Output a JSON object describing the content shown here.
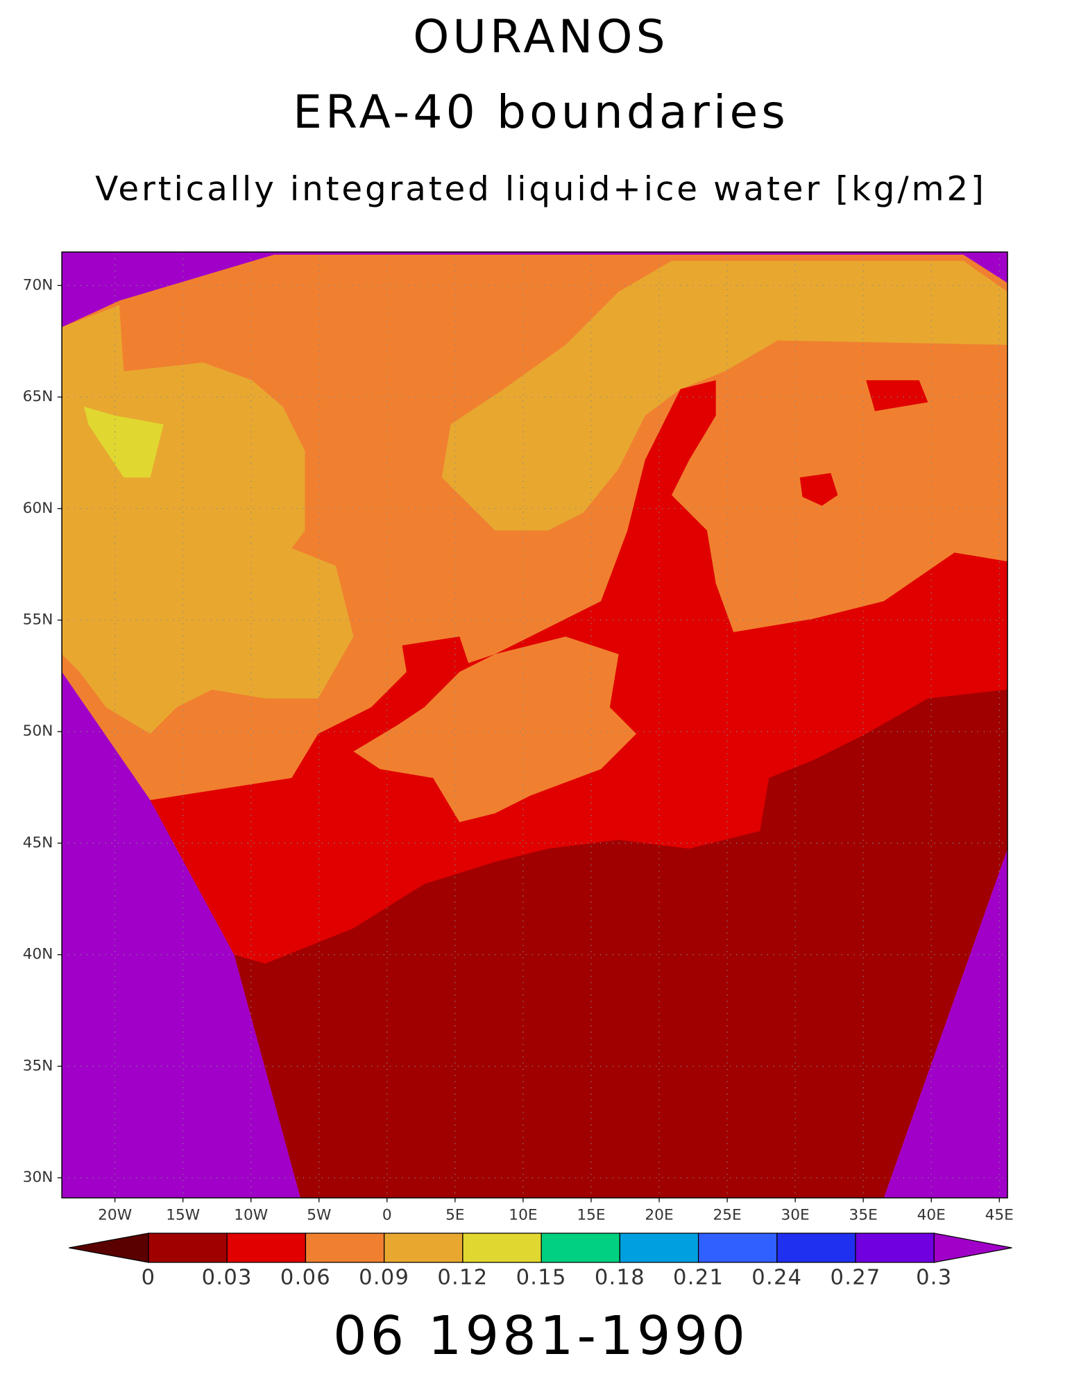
{
  "map": {
    "title": "OURANOS",
    "subtitle": "ERA-40 boundaries",
    "variable": "Vertically integrated liquid+ice water [kg/m2]",
    "period": "06 1981-1990",
    "xlim": [
      -23.9,
      45.6
    ],
    "ylim": [
      29.1,
      71.5
    ],
    "xticks": [
      {
        "value": -20,
        "label": "20W"
      },
      {
        "value": -15,
        "label": "15W"
      },
      {
        "value": -10,
        "label": "10W"
      },
      {
        "value": -5,
        "label": "5W"
      },
      0,
      {
        "value": 5,
        "label": "5E"
      },
      {
        "value": 10,
        "label": "10E"
      },
      {
        "value": 15,
        "label": "15E"
      },
      {
        "value": 20,
        "label": "20E"
      },
      {
        "value": 25,
        "label": "25E"
      },
      {
        "value": 30,
        "label": "30E"
      },
      {
        "value": 35,
        "label": "35E"
      },
      {
        "value": 40,
        "label": "40E"
      },
      {
        "value": 45,
        "label": "45E"
      }
    ],
    "yticks": [
      {
        "value": 30,
        "label": "30N"
      },
      {
        "value": 35,
        "label": "35N"
      },
      {
        "value": 40,
        "label": "40N"
      },
      {
        "value": 45,
        "label": "45N"
      },
      {
        "value": 50,
        "label": "50N"
      },
      {
        "value": 55,
        "label": "55N"
      },
      {
        "value": 60,
        "label": "60N"
      },
      {
        "value": 65,
        "label": "65N"
      },
      {
        "value": 70,
        "label": "70N"
      }
    ],
    "grid": true,
    "colorbar": {
      "levels": [
        0,
        0.03,
        0.06,
        0.09,
        0.12,
        0.15,
        0.18,
        0.21,
        0.24,
        0.27,
        0.3
      ],
      "colors": [
        "#5a0000",
        "#a00000",
        "#e00000",
        "#f08030",
        "#e8a830",
        "#e0d830",
        "#00d080",
        "#00a0e0",
        "#3060ff",
        "#2030f0",
        "#7000e0",
        "#a000c8"
      ]
    }
  }
}
